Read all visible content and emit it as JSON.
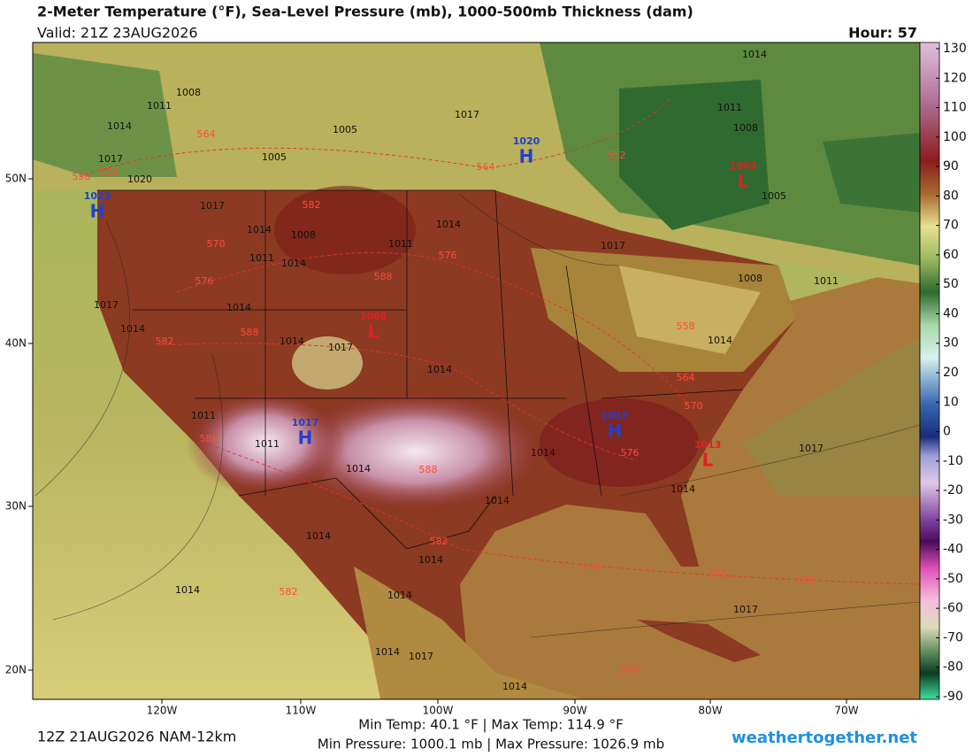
{
  "header": {
    "title": "2-Meter Temperature (°F), Sea-Level Pressure (mb), 1000-500mb Thickness (dam)",
    "valid": "Valid: 21Z 23AUG2026",
    "hour": "Hour: 57"
  },
  "colorbar": {
    "ticks": [
      130,
      120,
      110,
      100,
      90,
      80,
      70,
      60,
      50,
      40,
      30,
      20,
      10,
      0,
      -10,
      -20,
      -30,
      -40,
      -50,
      -60,
      -70,
      -80,
      -90
    ]
  },
  "axes": {
    "lon_labels": [
      "120W",
      "110W",
      "100W",
      "90W",
      "80W",
      "70W"
    ],
    "lat_labels": [
      "50N",
      "40N",
      "30N",
      "20N"
    ]
  },
  "pressure_centers": [
    {
      "letter": "H",
      "value": "1020",
      "color": "#2040d0"
    },
    {
      "letter": "H",
      "value": "1023",
      "color": "#2040d0"
    },
    {
      "letter": "L",
      "value": "1003",
      "color": "#e02020"
    },
    {
      "letter": "L",
      "value": "1008",
      "color": "#e02020"
    },
    {
      "letter": "H",
      "value": "1017",
      "color": "#2040d0"
    },
    {
      "letter": "H",
      "value": "1017",
      "color": "#2040d0"
    },
    {
      "letter": "L",
      "value": "1013",
      "color": "#e02020"
    }
  ],
  "isobar_labels": [
    "1008",
    "1011",
    "1014",
    "1017",
    "1020",
    "1005",
    "1005",
    "1017",
    "1014",
    "1011",
    "1008",
    "1005",
    "1017",
    "1014",
    "1008",
    "1011",
    "1014",
    "1011",
    "1014",
    "1017",
    "1008",
    "1011",
    "1017",
    "1014",
    "1014",
    "1014",
    "1017",
    "1014",
    "1014",
    "1011",
    "1011",
    "1014",
    "1014",
    "1017",
    "1014",
    "1014",
    "1014",
    "1014",
    "1014",
    "1014",
    "1014",
    "1017",
    "1014",
    "1017"
  ],
  "thickness_labels": [
    "564",
    "558",
    "558",
    "552",
    "564",
    "582",
    "570",
    "576",
    "576",
    "588",
    "582",
    "588",
    "558",
    "564",
    "570",
    "588",
    "588",
    "576",
    "582",
    "576",
    "576",
    "576",
    "582",
    "576"
  ],
  "footer": {
    "run": "12Z 21AUG2026 NAM-12km",
    "temp": "Min Temp:  40.1 °F | Max Temp: 114.9 °F",
    "pressure": "Min Pressure: 1000.1 mb | Max Pressure: 1026.9 mb",
    "site": "weathertogether.net"
  }
}
